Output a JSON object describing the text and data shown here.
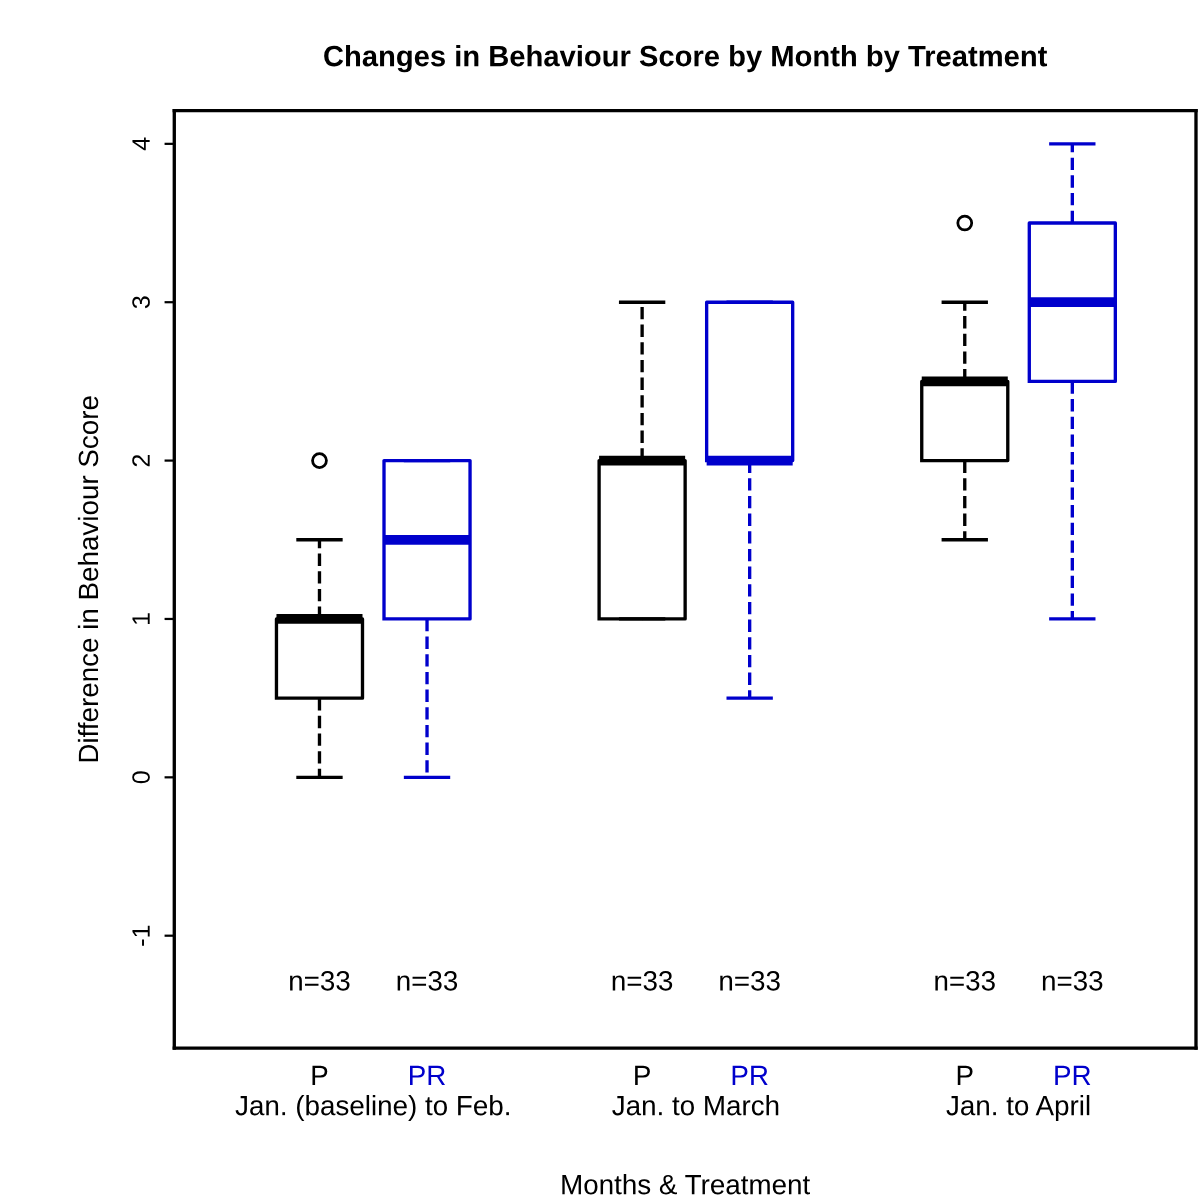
{
  "chart_data": {
    "type": "box",
    "title": "Changes in Behaviour Score by Month by Treatment",
    "xlabel": "Months & Treatment",
    "ylabel": "Difference in Behaviour Score",
    "categories": [
      "Jan. (baseline) to Feb.",
      "Jan. to March",
      "Jan. to April"
    ],
    "series": [
      {
        "name": "P",
        "color": "#000000",
        "boxes": [
          {
            "low": 0,
            "q1": 0.5,
            "median": 1,
            "q3": 1,
            "high": 1.5,
            "outliers": [
              2
            ]
          },
          {
            "low": 1,
            "q1": 1,
            "median": 2,
            "q3": 2,
            "high": 3
          },
          {
            "low": 1.5,
            "q1": 2,
            "median": 2.5,
            "q3": 2.5,
            "high": 3,
            "outliers": [
              3.5
            ]
          }
        ]
      },
      {
        "name": "PR",
        "color": "#0000cc",
        "boxes": [
          {
            "low": 0,
            "q1": 1,
            "median": 1.5,
            "q3": 2,
            "high": 2
          },
          {
            "low": 0.5,
            "q1": 2,
            "median": 2,
            "q3": 3,
            "high": 3
          },
          {
            "low": 1,
            "q1": 2.5,
            "median": 3,
            "q3": 3.5,
            "high": 4
          }
        ]
      }
    ],
    "annotations": [
      "n=33",
      "n=33",
      "n=33",
      "n=33",
      "n=33",
      "n=33"
    ],
    "ylim": [
      -1.71,
      4.21
    ],
    "yticks": [
      -1,
      0,
      1,
      2,
      3,
      4
    ],
    "grid": false,
    "legend": false,
    "marker": "circle",
    "line_style": "dashed"
  }
}
